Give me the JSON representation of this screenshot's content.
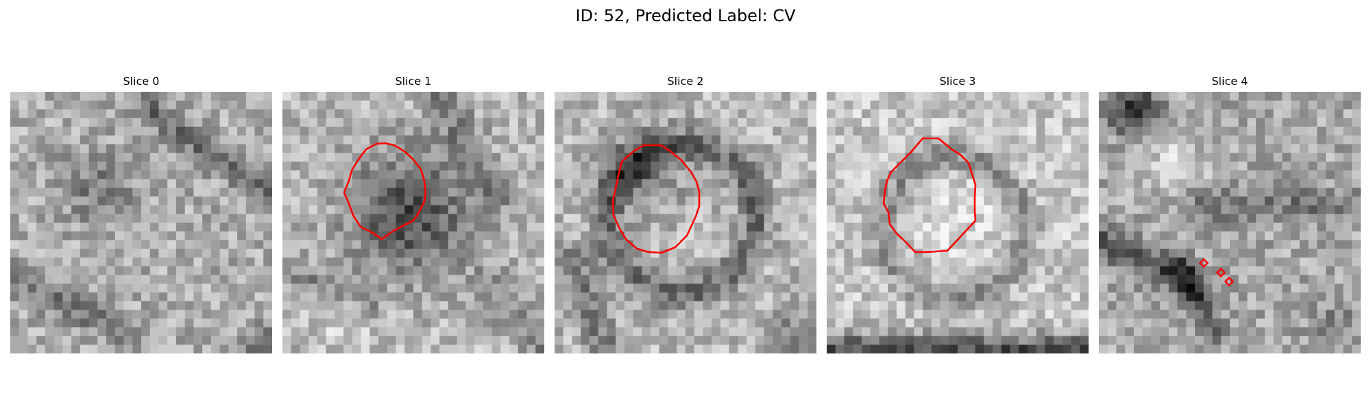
{
  "figure": {
    "title": "ID: 52, Predicted Label: CV"
  },
  "colors": {
    "contour": "#ff0000",
    "background": "#ffffff"
  },
  "panels": [
    {
      "title": "Slice 0",
      "has_contour": false
    },
    {
      "title": "Slice 1",
      "has_contour": true
    },
    {
      "title": "Slice 2",
      "has_contour": true
    },
    {
      "title": "Slice 3",
      "has_contour": true
    },
    {
      "title": "Slice 4",
      "has_contour": true
    }
  ]
}
